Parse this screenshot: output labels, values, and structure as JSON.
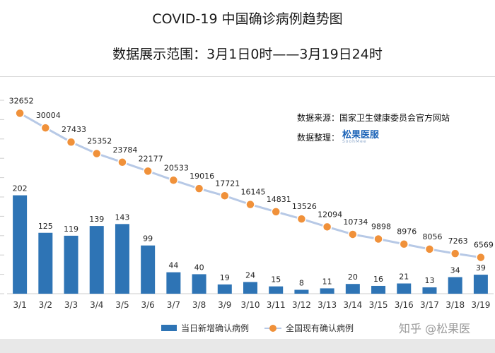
{
  "title": "COVID-19 中国确诊病例趋势图",
  "subtitle": "数据展示范围：3月1日0时——3月19日24时",
  "source": "数据来源：国家卫生健康委员会官方网站",
  "organizer_label": "数据整理：",
  "logo": {
    "name": "松果医服",
    "sub": "SoohMee"
  },
  "watermark": "知乎 @松果医",
  "colors": {
    "bar": "#2e74b5",
    "line": "#b7c9e6",
    "marker": "#f0913a"
  },
  "chart_data": {
    "type": "bar+line",
    "categories": [
      "3/1",
      "3/2",
      "3/3",
      "3/4",
      "3/5",
      "3/6",
      "3/7",
      "3/8",
      "3/9",
      "3/10",
      "3/11",
      "3/12",
      "3/13",
      "3/14",
      "3/15",
      "3/16",
      "3/17",
      "3/18",
      "3/19"
    ],
    "series": [
      {
        "name": "当日新增确认病例",
        "type": "bar",
        "values": [
          202,
          125,
          119,
          139,
          143,
          99,
          44,
          40,
          19,
          24,
          15,
          8,
          11,
          20,
          16,
          21,
          13,
          34,
          39
        ],
        "ylim": [
          0,
          400
        ]
      },
      {
        "name": "全国现有确认病例",
        "type": "line",
        "values": [
          32652,
          30004,
          27433,
          25352,
          23784,
          22177,
          20533,
          19016,
          17721,
          16145,
          14831,
          13526,
          12094,
          10734,
          9898,
          8976,
          8056,
          7263,
          6569
        ],
        "ylim": [
          0,
          35000
        ]
      }
    ],
    "legend": "bottom-center"
  }
}
